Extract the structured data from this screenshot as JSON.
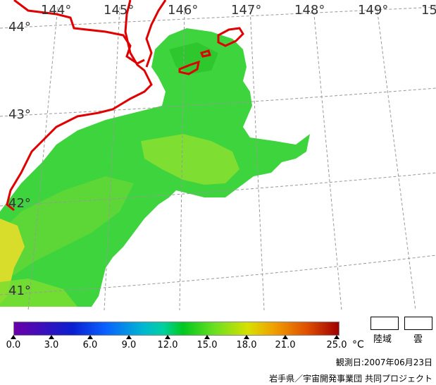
{
  "map": {
    "lon_labels": [
      "144°",
      "145°",
      "146°",
      "147°",
      "148°",
      "149°",
      "15"
    ],
    "lat_labels": [
      "44°",
      "43°",
      "42°",
      "41°"
    ]
  },
  "legend": {
    "ticks": [
      "0.0",
      "3.0",
      "6.0",
      "9.0",
      "12.0",
      "15.0",
      "18.0",
      "21.0",
      "25.0"
    ],
    "unit": "°C",
    "land_label": "陸域",
    "cloud_label": "雲"
  },
  "observation_date": "観測日:2007年06月23日",
  "credit": "岩手県／宇宙開発事業団 共同プロジェクト",
  "colors": {
    "coast": "#e00000",
    "grid": "#999999",
    "sst_main": "#3ed43e"
  }
}
